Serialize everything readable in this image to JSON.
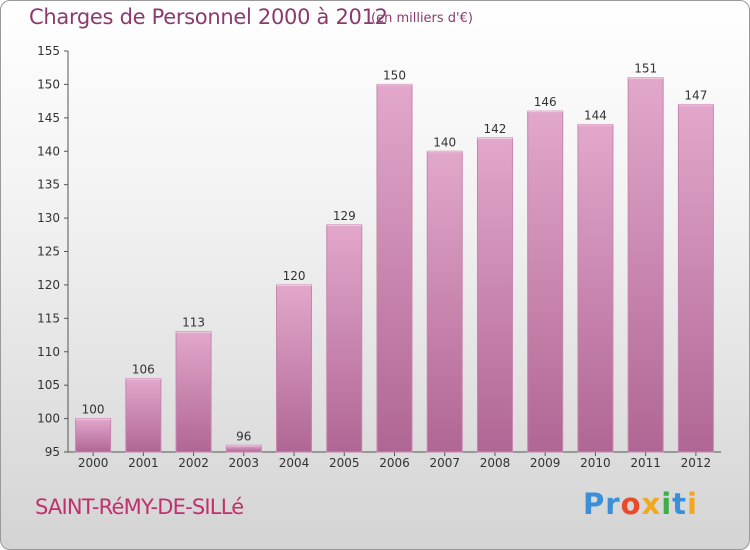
{
  "header": {
    "title": "Charges de Personnel 2000 à 2012",
    "unit": "(en milliers d'€)"
  },
  "footer": {
    "commune": "SAINT-RéMY-DE-SILLé",
    "logo_parts": [
      "Pr",
      "o",
      "x",
      "i",
      "t",
      "i"
    ]
  },
  "colors": {
    "bar": "#d08ab4",
    "bar_dark": "#a8588a",
    "text_accent": "#8b3a6e",
    "commune": "#c0306f"
  },
  "chart_data": {
    "type": "bar",
    "title": "Charges de Personnel 2000 à 2012",
    "subtitle": "(en milliers d'€)",
    "categories": [
      "2000",
      "2001",
      "2002",
      "2003",
      "2004",
      "2005",
      "2006",
      "2007",
      "2008",
      "2009",
      "2010",
      "2011",
      "2012"
    ],
    "values": [
      100,
      106,
      113,
      96,
      120,
      129,
      150,
      140,
      142,
      146,
      144,
      151,
      147
    ],
    "ylim": [
      95,
      155
    ],
    "yticks": [
      95,
      100,
      105,
      110,
      115,
      120,
      125,
      130,
      135,
      140,
      145,
      150,
      155
    ],
    "grid": false,
    "legend": "none"
  }
}
